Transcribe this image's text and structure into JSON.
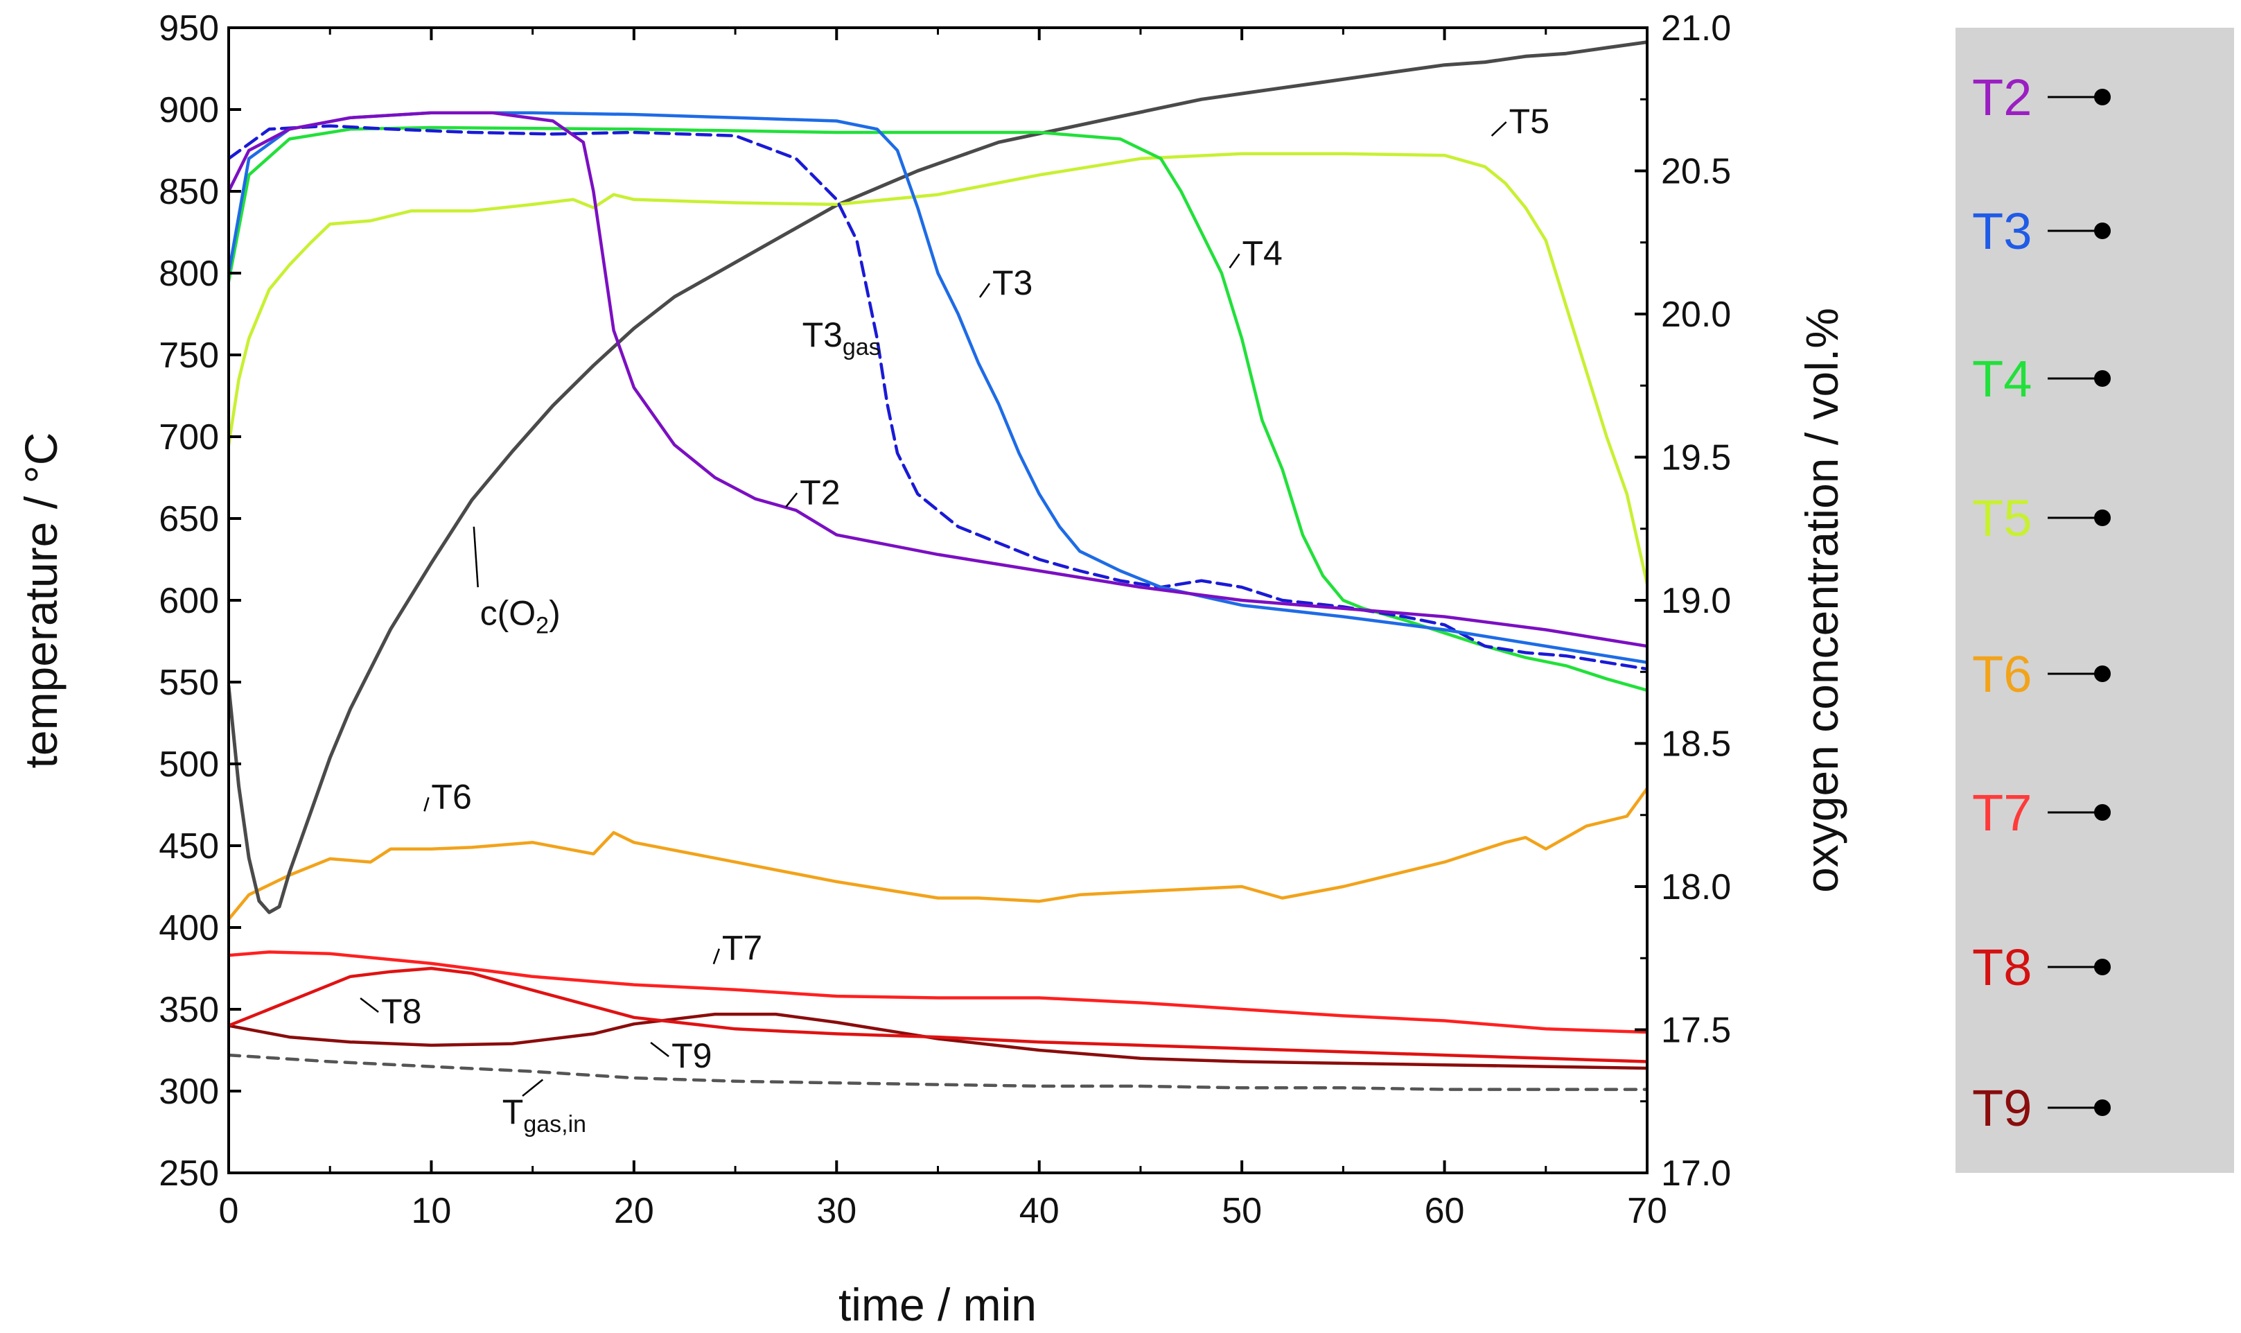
{
  "chart_data": {
    "type": "line",
    "xlabel": "time / min",
    "ylabel_left": "temperature / °C",
    "ylabel_right": "oxygen concentration / vol.%",
    "xlim": [
      0,
      70
    ],
    "ylim_left": [
      250,
      950
    ],
    "ylim_right": [
      17.0,
      21.0
    ],
    "xticks": [
      "0",
      "10",
      "20",
      "30",
      "40",
      "50",
      "60",
      "70"
    ],
    "xtick_values": [
      0,
      10,
      20,
      30,
      40,
      50,
      60,
      70
    ],
    "yticks_left": [
      "250",
      "300",
      "350",
      "400",
      "450",
      "500",
      "550",
      "600",
      "650",
      "700",
      "750",
      "800",
      "850",
      "900",
      "950"
    ],
    "ytick_values_left": [
      250,
      300,
      350,
      400,
      450,
      500,
      550,
      600,
      650,
      700,
      750,
      800,
      850,
      900,
      950
    ],
    "yticks_right": [
      "17.0",
      "17.5",
      "18.0",
      "18.5",
      "19.0",
      "19.5",
      "20.0",
      "20.5",
      "21.0"
    ],
    "ytick_values_right": [
      17.0,
      17.5,
      18.0,
      18.5,
      19.0,
      19.5,
      20.0,
      20.5,
      21.0
    ],
    "grid": false,
    "series": [
      {
        "name": "T2",
        "color": "#7b0fc2",
        "dash": "solid",
        "axis": "left",
        "x": [
          0,
          1,
          3,
          6,
          10,
          13,
          16,
          17.5,
          18,
          19,
          20,
          22,
          24,
          26,
          28,
          30,
          35,
          40,
          45,
          50,
          55,
          60,
          65,
          70
        ],
        "y": [
          850,
          875,
          888,
          895,
          898,
          898,
          893,
          880,
          850,
          765,
          730,
          695,
          675,
          662,
          655,
          640,
          628,
          618,
          608,
          600,
          595,
          590,
          582,
          572
        ]
      },
      {
        "name": "T3",
        "color": "#1e6be6",
        "dash": "solid",
        "axis": "left",
        "x": [
          0,
          1,
          3,
          6,
          10,
          15,
          20,
          25,
          30,
          32,
          33,
          34,
          35,
          36,
          37,
          38,
          39,
          40,
          41,
          42,
          44,
          46,
          50,
          55,
          60,
          65,
          70
        ],
        "y": [
          800,
          870,
          888,
          895,
          898,
          898,
          897,
          895,
          893,
          888,
          875,
          840,
          800,
          775,
          745,
          720,
          690,
          665,
          645,
          630,
          618,
          608,
          597,
          590,
          582,
          572,
          562
        ]
      },
      {
        "name": "T3gas",
        "color": "#1a1ad6",
        "dash": "dashed",
        "axis": "left",
        "x": [
          0,
          2,
          5,
          8,
          12,
          16,
          20,
          25,
          28,
          30,
          31,
          32,
          32.5,
          33,
          34,
          35,
          36,
          37,
          38,
          40,
          42,
          44,
          46,
          48,
          50,
          52,
          55,
          58,
          60,
          62,
          64,
          66,
          68,
          70
        ],
        "y": [
          870,
          888,
          890,
          888,
          886,
          885,
          886,
          884,
          870,
          845,
          820,
          760,
          720,
          690,
          665,
          655,
          645,
          640,
          635,
          625,
          618,
          612,
          608,
          612,
          608,
          600,
          596,
          590,
          585,
          572,
          568,
          566,
          562,
          558
        ]
      },
      {
        "name": "T4",
        "color": "#22e03a",
        "dash": "solid",
        "axis": "left",
        "x": [
          0,
          1,
          3,
          6,
          10,
          20,
          30,
          40,
          44,
          46,
          47,
          48,
          49,
          50,
          51,
          52,
          53,
          54,
          55,
          56,
          58,
          60,
          62,
          64,
          66,
          68,
          70
        ],
        "y": [
          795,
          860,
          882,
          888,
          889,
          888,
          886,
          886,
          882,
          870,
          850,
          825,
          800,
          760,
          710,
          680,
          640,
          615,
          600,
          595,
          588,
          580,
          572,
          565,
          560,
          552,
          545
        ]
      },
      {
        "name": "T5",
        "color": "#c8f032",
        "dash": "solid",
        "axis": "left",
        "x": [
          0,
          0.5,
          1,
          2,
          3,
          4,
          5,
          7,
          9,
          12,
          15,
          17,
          18,
          19,
          20,
          25,
          30,
          35,
          40,
          45,
          50,
          55,
          60,
          62,
          63,
          64,
          65,
          66,
          67,
          68,
          69,
          70
        ],
        "y": [
          695,
          735,
          760,
          790,
          805,
          818,
          830,
          832,
          838,
          838,
          842,
          845,
          840,
          848,
          845,
          843,
          842,
          848,
          860,
          870,
          873,
          873,
          872,
          865,
          855,
          840,
          820,
          780,
          740,
          700,
          665,
          610
        ]
      },
      {
        "name": "T6",
        "color": "#f2a31a",
        "dash": "solid",
        "axis": "left",
        "x": [
          0,
          1,
          3,
          5,
          7,
          8,
          10,
          12,
          15,
          18,
          19,
          20,
          25,
          30,
          33,
          35,
          37,
          40,
          42,
          45,
          50,
          52,
          55,
          60,
          63,
          64,
          65,
          67,
          69,
          70
        ],
        "y": [
          405,
          420,
          432,
          442,
          440,
          448,
          448,
          449,
          452,
          445,
          458,
          452,
          440,
          428,
          422,
          418,
          418,
          416,
          420,
          422,
          425,
          418,
          425,
          440,
          452,
          455,
          448,
          462,
          468,
          485
        ]
      },
      {
        "name": "T7",
        "color": "#ff2020",
        "dash": "solid",
        "axis": "left",
        "x": [
          0,
          2,
          5,
          10,
          15,
          20,
          25,
          30,
          35,
          40,
          45,
          50,
          55,
          60,
          65,
          70
        ],
        "y": [
          383,
          385,
          384,
          378,
          370,
          365,
          362,
          358,
          357,
          357,
          354,
          350,
          346,
          343,
          338,
          336
        ]
      },
      {
        "name": "T8",
        "color": "#e01212",
        "dash": "solid",
        "axis": "left",
        "x": [
          0,
          2,
          4,
          6,
          8,
          10,
          12,
          14,
          17,
          20,
          25,
          30,
          35,
          40,
          45,
          50,
          55,
          60,
          65,
          70
        ],
        "y": [
          340,
          350,
          360,
          370,
          373,
          375,
          372,
          365,
          355,
          345,
          338,
          335,
          333,
          330,
          328,
          326,
          324,
          322,
          320,
          318
        ]
      },
      {
        "name": "T9",
        "color": "#8a0c0c",
        "dash": "solid",
        "axis": "left",
        "x": [
          0,
          3,
          6,
          10,
          14,
          18,
          20,
          24,
          27,
          30,
          35,
          40,
          45,
          50,
          55,
          60,
          65,
          70
        ],
        "y": [
          340,
          333,
          330,
          328,
          329,
          335,
          341,
          347,
          347,
          342,
          332,
          325,
          320,
          318,
          317,
          316,
          315,
          314
        ]
      },
      {
        "name": "Tgas,in",
        "color": "#555555",
        "dash": "dashed",
        "axis": "left",
        "x": [
          0,
          5,
          10,
          15,
          20,
          25,
          30,
          35,
          40,
          45,
          50,
          55,
          60,
          65,
          70
        ],
        "y": [
          322,
          318,
          315,
          312,
          308,
          306,
          305,
          304,
          303,
          303,
          302,
          302,
          301,
          301,
          301
        ]
      },
      {
        "name": "c(O2)",
        "color": "#4a4a4a",
        "dash": "solid",
        "axis": "right",
        "x": [
          0,
          0.5,
          1,
          1.5,
          2,
          2.5,
          3,
          4,
          5,
          6,
          8,
          10,
          12,
          14,
          16,
          18,
          20,
          22,
          24,
          26,
          28,
          30,
          32,
          34,
          36,
          38,
          40,
          42,
          44,
          46,
          48,
          50,
          52,
          54,
          56,
          58,
          60,
          62,
          64,
          66,
          68,
          70
        ],
        "y": [
          18.7,
          18.35,
          18.1,
          17.95,
          17.91,
          17.93,
          18.05,
          18.25,
          18.45,
          18.62,
          18.9,
          19.13,
          19.35,
          19.52,
          19.68,
          19.82,
          19.95,
          20.06,
          20.14,
          20.22,
          20.3,
          20.38,
          20.44,
          20.5,
          20.55,
          20.6,
          20.63,
          20.66,
          20.69,
          20.72,
          20.75,
          20.77,
          20.79,
          20.81,
          20.83,
          20.85,
          20.87,
          20.88,
          20.9,
          20.91,
          20.93,
          20.95
        ]
      }
    ],
    "annotations": [
      {
        "id": "T5",
        "text": "T5",
        "x": 62.5,
        "y": 875
      },
      {
        "id": "T4",
        "text": "T4",
        "x": 49.5,
        "y": 810
      },
      {
        "id": "T3",
        "text": "T3",
        "x": 37,
        "y": 792
      },
      {
        "id": "T3gas",
        "text": "T3",
        "sub": "gas",
        "x": 28.5,
        "y": 748
      },
      {
        "id": "T2",
        "text": "T2",
        "x": 27.5,
        "y": 663
      },
      {
        "id": "cO2",
        "text": "c(O",
        "sub": "2",
        "tail": ")",
        "x": 12.5,
        "y": 602
      },
      {
        "id": "T6",
        "text": "T6",
        "x": 10,
        "y": 460
      },
      {
        "id": "T7",
        "text": "T7",
        "x": 24,
        "y": 376
      },
      {
        "id": "T8",
        "text": "T8",
        "x": 6.5,
        "y": 350
      },
      {
        "id": "T9",
        "text": "T9",
        "x": 21,
        "y": 325
      },
      {
        "id": "Tgas",
        "text": "T",
        "sub": "gas,in",
        "x": 13.5,
        "y": 292
      }
    ],
    "legend": {
      "placement": "right",
      "entries": [
        {
          "label": "T2",
          "color": "#9b1ec2"
        },
        {
          "label": "T3",
          "color": "#1f5be6"
        },
        {
          "label": "T4",
          "color": "#22e03a"
        },
        {
          "label": "T5",
          "color": "#c8f032"
        },
        {
          "label": "T6",
          "color": "#f2a31a"
        },
        {
          "label": "T7",
          "color": "#ff3a3a"
        },
        {
          "label": "T8",
          "color": "#d41010"
        },
        {
          "label": "T9",
          "color": "#8a0c0c"
        }
      ]
    }
  }
}
